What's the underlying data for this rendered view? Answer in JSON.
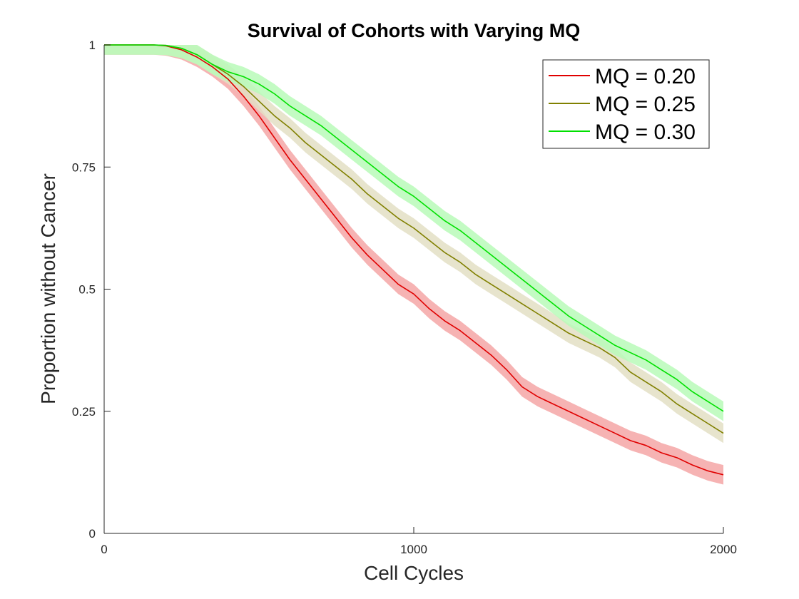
{
  "chart_data": {
    "type": "line",
    "title": "Survival of Cohorts with Varying MQ",
    "xlabel": "Cell Cycles",
    "ylabel": "Proportion without Cancer",
    "xlim": [
      0,
      2000
    ],
    "ylim": [
      0,
      1
    ],
    "xticks": [
      0,
      1000,
      2000
    ],
    "xtick_labels": [
      "0",
      "1000",
      "2000"
    ],
    "yticks": [
      0,
      0.25,
      0.5,
      0.75,
      1
    ],
    "ytick_labels": [
      "0",
      "0.25",
      "0.5",
      "0.75",
      "1"
    ],
    "grid": false,
    "legend_position": "top-right",
    "series": [
      {
        "name": "MQ = 0.20",
        "color": "#e00000",
        "band_color": "#f4a6a6",
        "band_halfwidth": 0.02,
        "x": [
          0,
          160,
          200,
          250,
          300,
          350,
          400,
          450,
          500,
          550,
          600,
          650,
          700,
          750,
          800,
          850,
          900,
          950,
          1000,
          1050,
          1100,
          1150,
          1200,
          1250,
          1300,
          1350,
          1400,
          1450,
          1500,
          1550,
          1600,
          1650,
          1700,
          1750,
          1800,
          1850,
          1900,
          1950,
          2000
        ],
        "values": [
          1.0,
          1.0,
          0.998,
          0.99,
          0.975,
          0.955,
          0.93,
          0.895,
          0.855,
          0.81,
          0.765,
          0.725,
          0.685,
          0.645,
          0.605,
          0.57,
          0.54,
          0.51,
          0.49,
          0.46,
          0.435,
          0.415,
          0.39,
          0.365,
          0.335,
          0.3,
          0.28,
          0.265,
          0.25,
          0.235,
          0.22,
          0.205,
          0.19,
          0.18,
          0.165,
          0.155,
          0.14,
          0.128,
          0.12
        ]
      },
      {
        "name": "MQ = 0.25",
        "color": "#808000",
        "band_color": "#e3dfc4",
        "band_halfwidth": 0.02,
        "x": [
          0,
          160,
          200,
          250,
          300,
          350,
          400,
          450,
          500,
          550,
          600,
          650,
          700,
          750,
          800,
          850,
          900,
          950,
          1000,
          1050,
          1100,
          1150,
          1200,
          1250,
          1300,
          1350,
          1400,
          1450,
          1500,
          1550,
          1600,
          1650,
          1700,
          1750,
          1800,
          1850,
          1900,
          1950,
          2000
        ],
        "values": [
          1.0,
          1.0,
          0.999,
          0.993,
          0.98,
          0.96,
          0.94,
          0.915,
          0.885,
          0.855,
          0.83,
          0.8,
          0.775,
          0.75,
          0.725,
          0.695,
          0.67,
          0.645,
          0.625,
          0.6,
          0.575,
          0.555,
          0.53,
          0.51,
          0.49,
          0.47,
          0.45,
          0.43,
          0.41,
          0.395,
          0.38,
          0.36,
          0.33,
          0.31,
          0.29,
          0.265,
          0.245,
          0.225,
          0.205
        ]
      },
      {
        "name": "MQ = 0.30",
        "color": "#00e000",
        "band_color": "#b8fab8",
        "band_halfwidth": 0.02,
        "x": [
          0,
          160,
          200,
          250,
          300,
          350,
          400,
          450,
          500,
          550,
          600,
          650,
          700,
          750,
          800,
          850,
          900,
          950,
          1000,
          1050,
          1100,
          1150,
          1200,
          1250,
          1300,
          1350,
          1400,
          1450,
          1500,
          1550,
          1600,
          1650,
          1700,
          1750,
          1800,
          1850,
          1900,
          1950,
          2000
        ],
        "values": [
          1.0,
          1.0,
          0.999,
          0.993,
          0.98,
          0.96,
          0.945,
          0.935,
          0.92,
          0.9,
          0.875,
          0.855,
          0.835,
          0.81,
          0.785,
          0.76,
          0.735,
          0.71,
          0.69,
          0.665,
          0.64,
          0.62,
          0.595,
          0.57,
          0.545,
          0.52,
          0.495,
          0.47,
          0.445,
          0.425,
          0.405,
          0.385,
          0.37,
          0.355,
          0.335,
          0.315,
          0.29,
          0.27,
          0.25
        ]
      }
    ]
  }
}
